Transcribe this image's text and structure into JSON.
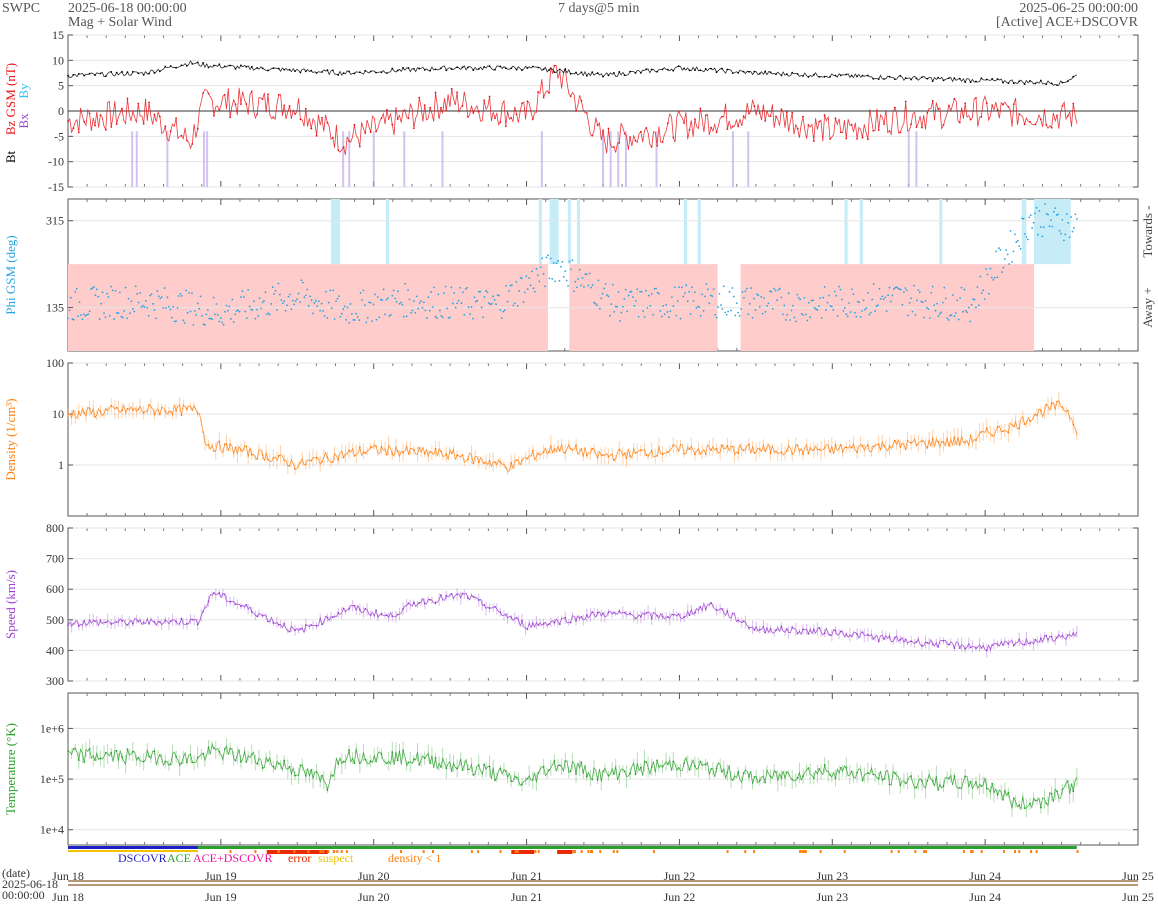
{
  "header": {
    "org": "SWPC",
    "start": "2025-06-18 00:00:00",
    "subtitle": "Mag + Solar Wind",
    "span": "7 days@5 min",
    "end": "2025-06-25 00:00:00",
    "source": "[Active] ACE+DSCOVR"
  },
  "colors": {
    "bt": "#000000",
    "bz": "#e8141a",
    "by": "#33c2ee",
    "bx": "#9a3fd0",
    "phi": "#2aa3e0",
    "phi_towards_bg": "#c6ecf8",
    "phi_away_bg": "#ffcccc",
    "density": "#ff7f0e",
    "speed": "#9a3fd0",
    "temperature": "#2ca02c",
    "dscovr": "#1f1fc8",
    "ace": "#2ca02c",
    "ace_dscovr": "#e8169b",
    "error": "#e82a00",
    "suspect": "#f2c200",
    "density_lt_1": "#ff7f0e"
  },
  "legend": {
    "dscovr": "DSCOVR",
    "ace": "ACE",
    "ace_dscovr": "ACE+DSCOVR",
    "error": "error",
    "suspect": "suspect",
    "density_lt_1": "density < 1"
  },
  "x_axis": {
    "date_label": "(date)",
    "date_value_line1": "2025-06-18",
    "date_value_line2": "00:00:00",
    "ticks": [
      "Jun 18",
      "Jun 19",
      "Jun 20",
      "Jun 21",
      "Jun 22",
      "Jun 23",
      "Jun 24",
      "Jun 25"
    ]
  },
  "chart_data": [
    {
      "type": "line",
      "panel": "magnetic",
      "ylabel_parts": [
        "Bt",
        "Bz GSM (nT)"
      ],
      "legend_glyphs": [
        "Bx",
        "By"
      ],
      "ylim": [
        -15,
        15
      ],
      "yticks": [
        "15",
        "10",
        "5",
        "0",
        "-5",
        "-10",
        "-15"
      ],
      "x_days": [
        0,
        0.5,
        0.8,
        0.9,
        1.5,
        1.8,
        2.5,
        3.0,
        3.2,
        3.5,
        4.0,
        4.5,
        5.0,
        5.5,
        6.0,
        6.5,
        6.6
      ],
      "series": [
        {
          "name": "Bt",
          "values": [
            7,
            7.5,
            9.5,
            9,
            8,
            7.5,
            8.5,
            8.5,
            8,
            7,
            8.5,
            7.5,
            7,
            6.5,
            6,
            5.5,
            7
          ]
        },
        {
          "name": "Bz",
          "values": [
            -2,
            0,
            -6,
            2,
            1,
            -6,
            2,
            -1,
            8,
            -6,
            -3,
            0,
            -4,
            -1,
            0,
            -1,
            -1
          ]
        }
      ]
    },
    {
      "type": "scatter",
      "panel": "phi",
      "ylabel": "Phi GSM (deg)",
      "yticks": [
        "315",
        "135"
      ],
      "ylim": [
        45,
        360
      ],
      "right_labels": [
        "Towards -",
        "Away +"
      ],
      "x_days": [
        0,
        0.5,
        1.0,
        1.5,
        1.8,
        2.2,
        2.8,
        3.2,
        3.6,
        4.2,
        4.8,
        5.4,
        5.9,
        6.3,
        6.6
      ],
      "values": [
        140,
        150,
        125,
        160,
        130,
        150,
        140,
        225,
        140,
        150,
        140,
        155,
        140,
        320,
        305
      ]
    },
    {
      "type": "line",
      "panel": "density",
      "ylabel": "Density (1/cm³)",
      "yscale": "log",
      "ylim": [
        0.1,
        100
      ],
      "yticks": [
        "100",
        "10",
        "1"
      ],
      "x_days": [
        0,
        0.4,
        0.85,
        0.9,
        1.3,
        1.5,
        2.0,
        2.5,
        2.9,
        3.2,
        3.5,
        4.0,
        5.0,
        5.9,
        6.2,
        6.5,
        6.6
      ],
      "values": [
        10,
        12,
        12,
        2.5,
        1.5,
        1.0,
        2.0,
        1.6,
        0.9,
        2.2,
        1.5,
        2.0,
        2.0,
        3.0,
        6,
        15,
        5
      ]
    },
    {
      "type": "line",
      "panel": "speed",
      "ylabel": "Speed (km/s)",
      "ylim": [
        300,
        800
      ],
      "yticks": [
        "800",
        "700",
        "600",
        "500",
        "400",
        "300"
      ],
      "x_days": [
        0,
        0.85,
        0.95,
        1.5,
        1.85,
        2.1,
        2.3,
        2.6,
        3.0,
        3.5,
        4.0,
        4.2,
        4.5,
        5.0,
        5.5,
        6.0,
        6.6
      ],
      "values": [
        490,
        495,
        590,
        460,
        540,
        510,
        560,
        580,
        480,
        520,
        510,
        550,
        470,
        460,
        430,
        410,
        450
      ]
    },
    {
      "type": "line",
      "panel": "temperature",
      "ylabel": "Temperature (°K)",
      "yscale": "log",
      "ylim": [
        5000,
        5000000
      ],
      "yticks": [
        "1e+6",
        "1e+5",
        "1e+4"
      ],
      "x_days": [
        0,
        0.85,
        0.95,
        1.5,
        1.7,
        1.8,
        2.3,
        3.0,
        3.2,
        3.5,
        4.0,
        4.5,
        5.0,
        5.5,
        6.0,
        6.2,
        6.4,
        6.6
      ],
      "values": [
        300000,
        250000,
        350000,
        150000,
        80000,
        300000,
        250000,
        80000,
        200000,
        120000,
        200000,
        100000,
        150000,
        90000,
        80000,
        30000,
        40000,
        80000
      ]
    }
  ]
}
